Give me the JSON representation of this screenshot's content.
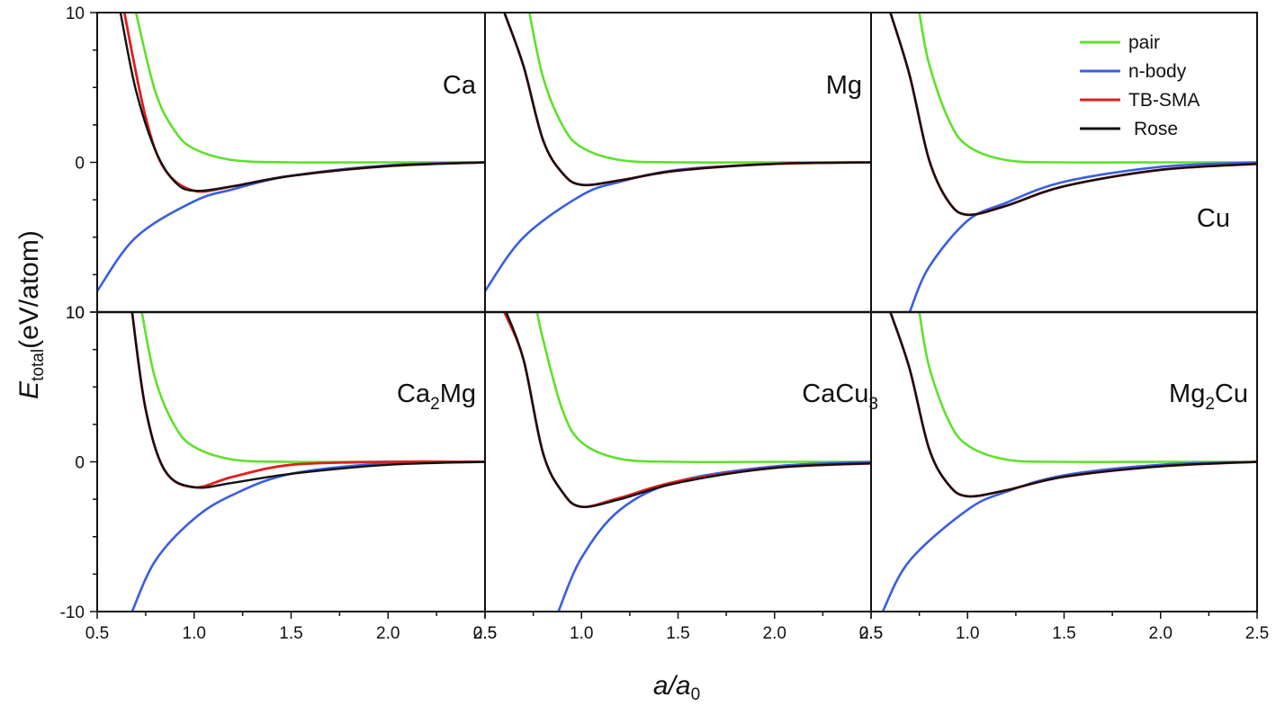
{
  "chart_data": {
    "type": "line",
    "grid": false,
    "layout": "2x3 panels, shared axes",
    "xlabel": "a/a",
    "xlabel_sub": "0",
    "ylabel": "E",
    "ylabel_sub": "total",
    "ylabel_unit": "(eV/atom)",
    "xlim": [
      0.5,
      2.5
    ],
    "ylim": [
      -10,
      10
    ],
    "x_tick_labels": [
      "0.5",
      "1.0",
      "1.5",
      "2.0",
      "2.5"
    ],
    "y_tick_labels_top_row": [
      "10",
      "0",
      "10"
    ],
    "y_tick_labels_bottom_row": [
      "10",
      "0",
      "-10"
    ],
    "legend": {
      "position": "top-right",
      "entries": [
        {
          "name": "pair",
          "color": "#5ee12b"
        },
        {
          "name": "n-body",
          "color": "#3a5ee0"
        },
        {
          "name": "TB-SMA",
          "color": "#e01e1e"
        },
        {
          "name": "Rose",
          "color": "#111111"
        }
      ]
    },
    "panels": [
      {
        "label": "Ca",
        "label_sub": "",
        "label_rest": "",
        "E0": -1.9,
        "n_body_at_0_5": -8.6,
        "series": [
          {
            "name": "pair",
            "x": [
              0.7,
              0.8,
              0.9,
              1.0,
              1.2,
              1.5,
              2.0,
              2.5
            ],
            "y": [
              10.0,
              4.7,
              2.1,
              0.9,
              0.15,
              0.0,
              0.0,
              0.0
            ]
          },
          {
            "name": "n-body",
            "x": [
              0.5,
              0.7,
              1.0,
              1.2,
              1.5,
              2.0,
              2.5
            ],
            "y": [
              -8.6,
              -5.0,
              -2.6,
              -1.8,
              -0.9,
              -0.2,
              0.0
            ]
          },
          {
            "name": "TB-SMA",
            "x": [
              0.64,
              0.75,
              0.85,
              1.0,
              1.2,
              1.5,
              2.0,
              2.5
            ],
            "y": [
              10.0,
              3.0,
              -0.5,
              -1.9,
              -1.6,
              -0.9,
              -0.25,
              0.0
            ]
          },
          {
            "name": "Rose",
            "x": [
              0.62,
              0.7,
              0.8,
              0.9,
              1.0,
              1.2,
              1.5,
              2.0,
              2.5
            ],
            "y": [
              10.0,
              4.8,
              0.8,
              -1.3,
              -1.9,
              -1.6,
              -0.9,
              -0.25,
              0.0
            ]
          }
        ]
      },
      {
        "label": "Mg",
        "label_sub": "",
        "label_rest": "",
        "E0": -1.5,
        "n_body_at_0_5": -8.6,
        "series": [
          {
            "name": "pair",
            "x": [
              0.73,
              0.8,
              0.9,
              1.0,
              1.2,
              1.5,
              2.0,
              2.5
            ],
            "y": [
              10.0,
              5.7,
              2.5,
              1.0,
              0.15,
              0.0,
              0.0,
              0.0
            ]
          },
          {
            "name": "n-body",
            "x": [
              0.5,
              0.7,
              1.0,
              1.2,
              1.5,
              2.0,
              2.5
            ],
            "y": [
              -8.6,
              -5.0,
              -2.2,
              -1.3,
              -0.5,
              -0.1,
              0.0
            ]
          },
          {
            "name": "TB-SMA",
            "x": [
              0.6,
              0.7,
              0.8,
              0.9,
              1.0,
              1.2,
              1.5,
              2.0,
              2.5
            ],
            "y": [
              10.0,
              6.4,
              1.5,
              -0.7,
              -1.5,
              -1.2,
              -0.55,
              -0.1,
              0.0
            ]
          },
          {
            "name": "Rose",
            "x": [
              0.6,
              0.7,
              0.8,
              0.9,
              1.0,
              1.2,
              1.5,
              2.0,
              2.5
            ],
            "y": [
              10.0,
              6.4,
              1.5,
              -0.7,
              -1.5,
              -1.2,
              -0.55,
              -0.1,
              0.0
            ]
          }
        ]
      },
      {
        "label": "Cu",
        "label_sub": "",
        "label_rest": "",
        "E0": -3.5,
        "n_body_at_0_5": -10.0,
        "series": [
          {
            "name": "pair",
            "x": [
              0.75,
              0.8,
              0.9,
              1.0,
              1.2,
              1.5,
              2.0,
              2.5
            ],
            "y": [
              10.0,
              6.6,
              2.9,
              1.1,
              0.15,
              0.0,
              0.0,
              0.0
            ]
          },
          {
            "name": "n-body",
            "x": [
              0.7,
              0.8,
              1.0,
              1.2,
              1.5,
              2.0,
              2.5
            ],
            "y": [
              -10.0,
              -7.0,
              -3.9,
              -2.7,
              -1.3,
              -0.3,
              0.0
            ]
          },
          {
            "name": "TB-SMA",
            "x": [
              0.6,
              0.7,
              0.8,
              0.9,
              1.0,
              1.2,
              1.5,
              2.0,
              2.5
            ],
            "y": [
              10.0,
              5.8,
              0.2,
              -2.6,
              -3.5,
              -2.9,
              -1.6,
              -0.5,
              -0.1
            ]
          },
          {
            "name": "Rose",
            "x": [
              0.6,
              0.7,
              0.8,
              0.9,
              1.0,
              1.2,
              1.5,
              2.0,
              2.5
            ],
            "y": [
              10.0,
              5.8,
              0.2,
              -2.6,
              -3.5,
              -2.9,
              -1.6,
              -0.5,
              -0.1
            ]
          }
        ]
      },
      {
        "label": "Ca",
        "label_sub": "2",
        "label_rest": "Mg",
        "E0": -1.7,
        "n_body_at_0_5": -10.0,
        "series": [
          {
            "name": "pair",
            "x": [
              0.73,
              0.8,
              0.9,
              1.0,
              1.2,
              1.5,
              2.0,
              2.5
            ],
            "y": [
              10.0,
              5.5,
              2.4,
              1.0,
              0.15,
              0.0,
              0.0,
              0.0
            ]
          },
          {
            "name": "n-body",
            "x": [
              0.68,
              0.8,
              1.0,
              1.2,
              1.5,
              2.0,
              2.5
            ],
            "y": [
              -10.0,
              -6.6,
              -3.8,
              -2.2,
              -0.8,
              -0.1,
              0.0
            ]
          },
          {
            "name": "TB-SMA",
            "x": [
              0.68,
              0.75,
              0.85,
              1.0,
              1.2,
              1.5,
              2.0,
              2.5
            ],
            "y": [
              10.0,
              3.5,
              -0.6,
              -1.7,
              -1.0,
              -0.2,
              0.0,
              0.0
            ]
          },
          {
            "name": "Rose",
            "x": [
              0.68,
              0.75,
              0.85,
              1.0,
              1.2,
              1.5,
              2.0,
              2.5
            ],
            "y": [
              10.0,
              3.5,
              -0.6,
              -1.7,
              -1.4,
              -0.8,
              -0.2,
              0.0
            ]
          }
        ]
      },
      {
        "label": "CaCu",
        "label_sub": "3",
        "label_rest": "",
        "E0": -3.0,
        "n_body_at_0_5": -10.0,
        "series": [
          {
            "name": "pair",
            "x": [
              0.77,
              0.8,
              0.9,
              1.0,
              1.2,
              1.5,
              2.0,
              2.5
            ],
            "y": [
              10.0,
              8.2,
              3.5,
              1.3,
              0.2,
              0.0,
              0.0,
              0.0
            ]
          },
          {
            "name": "n-body",
            "x": [
              0.88,
              1.0,
              1.2,
              1.5,
              2.0,
              2.5
            ],
            "y": [
              -10.0,
              -6.4,
              -3.2,
              -1.3,
              -0.3,
              0.0
            ]
          },
          {
            "name": "TB-SMA",
            "x": [
              0.6,
              0.7,
              0.8,
              0.9,
              1.0,
              1.2,
              1.5,
              2.0,
              2.5
            ],
            "y": [
              10.0,
              6.8,
              0.6,
              -2.0,
              -3.0,
              -2.4,
              -1.3,
              -0.4,
              -0.1
            ]
          },
          {
            "name": "Rose",
            "x": [
              0.61,
              0.7,
              0.8,
              0.9,
              1.0,
              1.2,
              1.5,
              2.0,
              2.5
            ],
            "y": [
              10.0,
              6.8,
              0.6,
              -2.0,
              -3.0,
              -2.5,
              -1.4,
              -0.4,
              -0.1
            ]
          }
        ]
      },
      {
        "label": "Mg",
        "label_sub": "2",
        "label_rest": "Cu",
        "E0": -2.3,
        "n_body_at_0_5": -10.0,
        "series": [
          {
            "name": "pair",
            "x": [
              0.75,
              0.8,
              0.9,
              1.0,
              1.2,
              1.5,
              2.0,
              2.5
            ],
            "y": [
              10.0,
              6.4,
              2.8,
              1.1,
              0.15,
              0.0,
              0.0,
              0.0
            ]
          },
          {
            "name": "n-body",
            "x": [
              0.56,
              0.7,
              1.0,
              1.2,
              1.5,
              2.0,
              2.5
            ],
            "y": [
              -10.0,
              -6.6,
              -3.2,
              -2.0,
              -0.9,
              -0.2,
              0.0
            ]
          },
          {
            "name": "TB-SMA",
            "x": [
              0.6,
              0.7,
              0.8,
              0.9,
              1.0,
              1.2,
              1.5,
              2.0,
              2.5
            ],
            "y": [
              10.0,
              6.2,
              0.9,
              -1.5,
              -2.3,
              -1.9,
              -1.0,
              -0.3,
              0.0
            ]
          },
          {
            "name": "Rose",
            "x": [
              0.6,
              0.7,
              0.8,
              0.9,
              1.0,
              1.2,
              1.5,
              2.0,
              2.5
            ],
            "y": [
              10.0,
              6.2,
              0.9,
              -1.5,
              -2.3,
              -1.9,
              -1.0,
              -0.3,
              0.0
            ]
          }
        ]
      }
    ]
  }
}
